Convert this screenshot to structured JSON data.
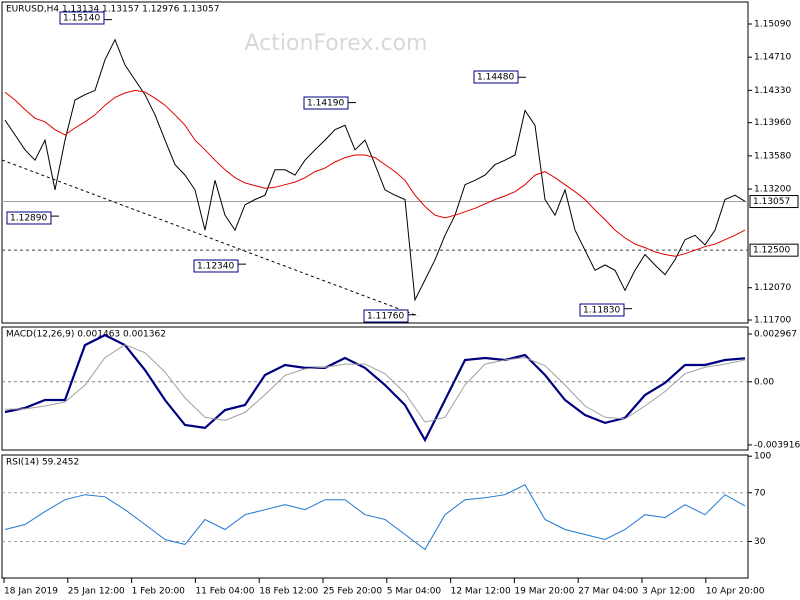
{
  "watermark": "ActionForex.com",
  "time_axis": [
    "18 Jan 2019",
    "25 Jan 12:00",
    "1 Feb 20:00",
    "11 Feb 04:00",
    "18 Feb 12:00",
    "25 Feb 20:00",
    "5 Mar 04:00",
    "12 Mar 12:00",
    "19 Mar 20:00",
    "27 Mar 04:00",
    "3 Apr 12:00",
    "10 Apr 20:00"
  ],
  "chart_data": [
    {
      "type": "line",
      "title": "EURUSD,H4  1.13134 1.13157 1.12976 1.13057",
      "series": [
        {
          "color": "#000000",
          "width": 1,
          "values": [
            1.1399,
            1.1382,
            1.1365,
            1.1353,
            1.1376,
            1.1319,
            1.1376,
            1.1422,
            1.1428,
            1.1433,
            1.1468,
            1.1491,
            1.1462,
            1.1445,
            1.1428,
            1.1405,
            1.1376,
            1.1348,
            1.1336,
            1.1319,
            1.1273,
            1.133,
            1.129,
            1.1273,
            1.1302,
            1.1308,
            1.1313,
            1.1342,
            1.1342,
            1.1336,
            1.1353,
            1.1365,
            1.1376,
            1.1388,
            1.1393,
            1.1365,
            1.1376,
            1.1348,
            1.1319,
            1.1313,
            1.1308,
            1.1193,
            1.1216,
            1.1239,
            1.1267,
            1.129,
            1.1325,
            1.133,
            1.1336,
            1.1348,
            1.1353,
            1.1359,
            1.141,
            1.1393,
            1.1308,
            1.129,
            1.1319,
            1.1273,
            1.125,
            1.1227,
            1.1233,
            1.1227,
            1.1204,
            1.1227,
            1.1245,
            1.1233,
            1.1222,
            1.1239,
            1.1262,
            1.1267,
            1.1256,
            1.1273,
            1.1308,
            1.1313,
            1.1306
          ]
        },
        {
          "color": "#e00000",
          "width": 1,
          "values": [
            1.1431,
            1.1422,
            1.1411,
            1.1401,
            1.1397,
            1.1388,
            1.1382,
            1.139,
            1.1397,
            1.1405,
            1.1416,
            1.1425,
            1.143,
            1.1433,
            1.1431,
            1.1424,
            1.1416,
            1.1405,
            1.1393,
            1.1376,
            1.1365,
            1.1353,
            1.1342,
            1.1333,
            1.1327,
            1.1324,
            1.1321,
            1.1322,
            1.1325,
            1.1328,
            1.1333,
            1.134,
            1.1344,
            1.1351,
            1.1356,
            1.1359,
            1.1359,
            1.1356,
            1.1348,
            1.134,
            1.133,
            1.1313,
            1.13,
            1.129,
            1.1287,
            1.129,
            1.1294,
            1.1298,
            1.1303,
            1.1308,
            1.1312,
            1.1317,
            1.1325,
            1.1336,
            1.134,
            1.1333,
            1.1325,
            1.1317,
            1.1308,
            1.1296,
            1.1285,
            1.1273,
            1.1264,
            1.1257,
            1.1253,
            1.1248,
            1.1245,
            1.1243,
            1.1246,
            1.125,
            1.1254,
            1.1257,
            1.1262,
            1.1267,
            1.1273
          ]
        }
      ],
      "ylim": [
        1.11666,
        1.15342
      ],
      "yticks": [
        {
          "value": 1.1509,
          "label": "1.15090"
        },
        {
          "value": 1.1471,
          "label": "1.14710"
        },
        {
          "value": 1.1433,
          "label": "1.14330"
        },
        {
          "value": 1.1396,
          "label": "1.13960"
        },
        {
          "value": 1.1358,
          "label": "1.13580"
        },
        {
          "value": 1.132,
          "label": "1.13200"
        },
        {
          "value": 1.1207,
          "label": "1.12070"
        },
        {
          "value": 1.117,
          "label": "1.11700"
        }
      ],
      "levels": [
        {
          "value": 1.13057,
          "label": "1.13057",
          "color": "#a0a0a0",
          "dashed": false
        },
        {
          "value": 1.125,
          "label": "1.12500",
          "color": "#404040",
          "dashed": true
        }
      ],
      "annotations": [
        {
          "value": 1.1514,
          "label": "1.15140"
        },
        {
          "value": 1.1419,
          "label": "1.14190"
        },
        {
          "value": 1.1448,
          "label": "1.14480"
        },
        {
          "value": 1.1289,
          "label": "1.12890"
        },
        {
          "value": 1.1234,
          "label": "1.12340"
        },
        {
          "value": 1.1176,
          "label": "1.11760"
        },
        {
          "value": 1.1183,
          "label": "1.11830"
        }
      ]
    },
    {
      "type": "line",
      "title": "MACD(12,26,9) 0.001463 0.001362",
      "series": [
        {
          "color": "#000080",
          "width": 2.2,
          "values": [
            -0.00187,
            -0.00162,
            -0.00113,
            -0.00113,
            0.00228,
            0.0029,
            0.00228,
            0.00073,
            -0.00113,
            -0.00268,
            -0.00286,
            -0.00175,
            -0.00144,
            0.00042,
            0.00104,
            0.00086,
            0.00086,
            0.00148,
            0.00086,
            -0.0002,
            -0.00144,
            -0.00361,
            -0.00113,
            0.00135,
            0.00148,
            0.00135,
            0.00166,
            0.00042,
            -0.00113,
            -0.00206,
            -0.00255,
            -0.00224,
            -0.00082,
            -7e-05,
            0.00104,
            0.00104,
            0.00135,
            0.00146
          ]
        },
        {
          "color": "#a0a0a0",
          "width": 1,
          "values": [
            -0.0017,
            -0.00168,
            -0.0015,
            -0.00125,
            -0.0002,
            0.0015,
            0.0023,
            0.0018,
            0.0006,
            -0.001,
            -0.0022,
            -0.0024,
            -0.0019,
            -0.0008,
            0.0004,
            0.0008,
            0.0009,
            0.0011,
            0.0011,
            0.0005,
            -0.0007,
            -0.0025,
            -0.0022,
            -0.0002,
            0.0011,
            0.00135,
            0.0015,
            0.001,
            -0.0002,
            -0.0015,
            -0.0022,
            -0.0023,
            -0.0015,
            -0.0006,
            0.0005,
            0.0009,
            0.0011,
            0.00136
          ]
        }
      ],
      "ylim": [
        -0.00423,
        0.0034
      ],
      "yticks": [
        0.002967,
        {
          "value": 0,
          "label": "0.00"
        },
        -0.003916
      ],
      "levels": [
        {
          "value": 0,
          "color": "#808080",
          "dashed": true
        }
      ]
    },
    {
      "type": "line",
      "title": "RSI(14) 59.2452",
      "series": [
        {
          "color": "#1e78d2",
          "width": 1,
          "values": [
            39.8,
            43.9,
            54.5,
            64.3,
            68.4,
            66.7,
            56.1,
            43.9,
            31.6,
            27.6,
            48.0,
            39.8,
            52.0,
            56.1,
            60.2,
            56.1,
            64.3,
            64.3,
            52.0,
            48.0,
            35.7,
            23.5,
            52.0,
            64.3,
            65.9,
            68.4,
            76.5,
            48.0,
            39.8,
            35.7,
            31.6,
            39.8,
            52.0,
            49.6,
            60.2,
            52.0,
            68.4,
            59.2
          ]
        }
      ],
      "ylim": [
        0,
        101
      ],
      "yticks": [
        100,
        70,
        30
      ],
      "levels": [
        {
          "value": 70,
          "color": "#a0a0a0",
          "dashed": true
        },
        {
          "value": 30,
          "color": "#a0a0a0",
          "dashed": true
        }
      ]
    }
  ]
}
